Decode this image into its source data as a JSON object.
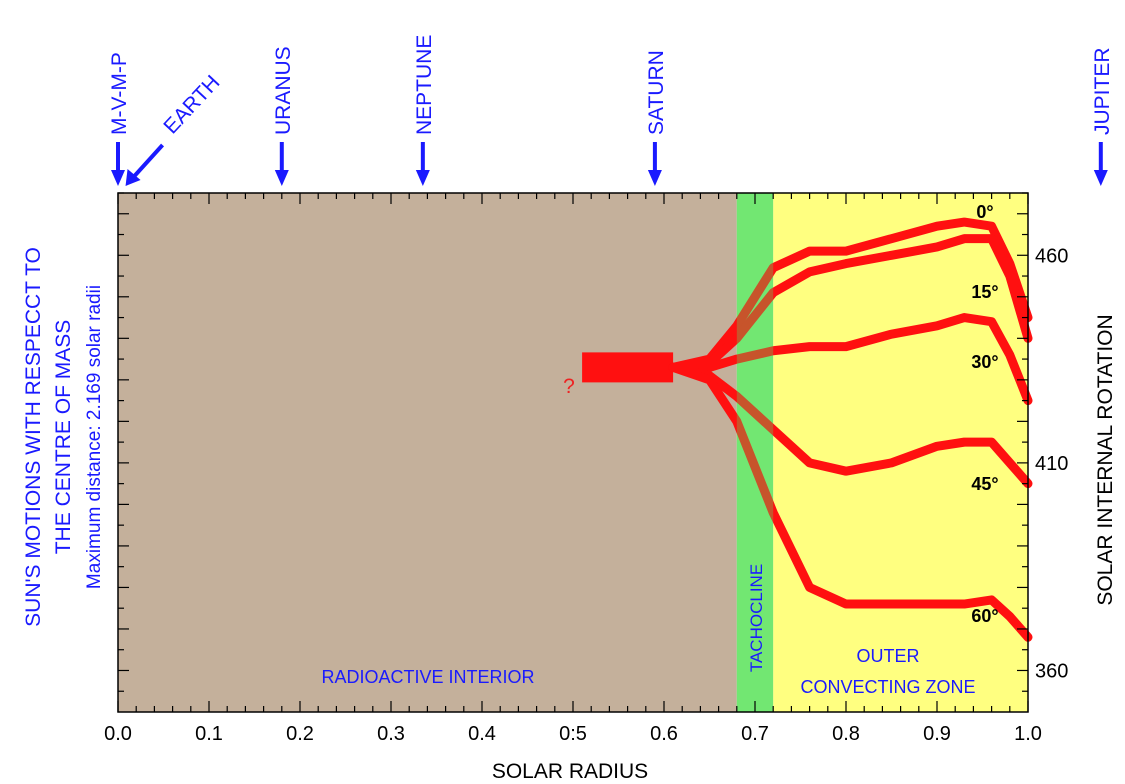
{
  "chart_data": {
    "type": "line",
    "xlabel": "SOLAR RADIUS",
    "ylabel": "SOLAR INTERNAL ROTATION",
    "left_title_lines": [
      "SUN'S MOTIONS WITH RESPECCT TO",
      "THE CENTRE OF MASS",
      "Maximum distance: 2.169 solar radii"
    ],
    "xlim": [
      0.0,
      1.0
    ],
    "ylim": [
      350,
      475
    ],
    "x_ticks": [
      "0.0",
      "0.1",
      "0.2",
      "0.3",
      "0.4",
      "0:5",
      "0.6",
      "0.7",
      "0.8",
      "0.9",
      "1.0"
    ],
    "y_ticks": [
      {
        "value": 360,
        "label": "360"
      },
      {
        "value": 410,
        "label": "410"
      },
      {
        "value": 460,
        "label": "460"
      }
    ],
    "planets": [
      {
        "name": "M-V-M-P",
        "x": 0.0,
        "rotated": false
      },
      {
        "name": "EARTH",
        "x": 0.005,
        "rotated": true
      },
      {
        "name": "URANUS",
        "x": 0.18,
        "rotated": false
      },
      {
        "name": "NEPTUNE",
        "x": 0.335,
        "rotated": false
      },
      {
        "name": "SATURN",
        "x": 0.59,
        "rotated": false
      },
      {
        "name": "JUPITER",
        "x": 1.08,
        "rotated": false
      }
    ],
    "regions": [
      {
        "name": "RADIOACTIVE INTERIOR",
        "x_from": 0.0,
        "x_to": 0.68,
        "color": "#c4b09b"
      },
      {
        "name": "TACHOCLINE",
        "x_from": 0.68,
        "x_to": 0.72,
        "color": "#7df27d"
      },
      {
        "name": "OUTER CONVECTING ZONE",
        "x_from": 0.72,
        "x_to": 1.0,
        "color": "#ffff80"
      }
    ],
    "region_labels": {
      "interior": "RADIOACTIVE INTERIOR",
      "tachocline": "TACHOCLINE",
      "outer_line1": "OUTER",
      "outer_line2": "CONVECTING ZONE"
    },
    "question_mark": "?",
    "core_band": {
      "x_from": 0.51,
      "x_to": 0.61,
      "y": 433
    },
    "series": [
      {
        "name": "0°",
        "x": [
          0.65,
          0.68,
          0.72,
          0.76,
          0.8,
          0.85,
          0.9,
          0.93,
          0.96,
          0.98,
          1.0
        ],
        "y": [
          435,
          443,
          457,
          461,
          461,
          464,
          467,
          468,
          467,
          458,
          445
        ]
      },
      {
        "name": "15°",
        "x": [
          0.65,
          0.68,
          0.72,
          0.76,
          0.8,
          0.85,
          0.9,
          0.93,
          0.96,
          0.98,
          1.0
        ],
        "y": [
          434,
          440,
          451,
          456,
          458,
          460,
          462,
          464,
          464,
          455,
          440
        ]
      },
      {
        "name": "30°",
        "x": [
          0.65,
          0.68,
          0.72,
          0.76,
          0.8,
          0.85,
          0.9,
          0.93,
          0.96,
          0.98,
          1.0
        ],
        "y": [
          433,
          435,
          437,
          438,
          438,
          441,
          443,
          445,
          444,
          436,
          425
        ]
      },
      {
        "name": "45°",
        "x": [
          0.65,
          0.68,
          0.72,
          0.76,
          0.8,
          0.85,
          0.9,
          0.93,
          0.96,
          0.98,
          1.0
        ],
        "y": [
          431,
          426,
          418,
          410,
          408,
          410,
          414,
          415,
          415,
          410,
          405
        ]
      },
      {
        "name": "60°",
        "x": [
          0.65,
          0.68,
          0.72,
          0.76,
          0.8,
          0.85,
          0.9,
          0.93,
          0.96,
          0.98,
          1.0
        ],
        "y": [
          430,
          420,
          398,
          380,
          376,
          376,
          376,
          376,
          377,
          373,
          368
        ]
      }
    ]
  }
}
